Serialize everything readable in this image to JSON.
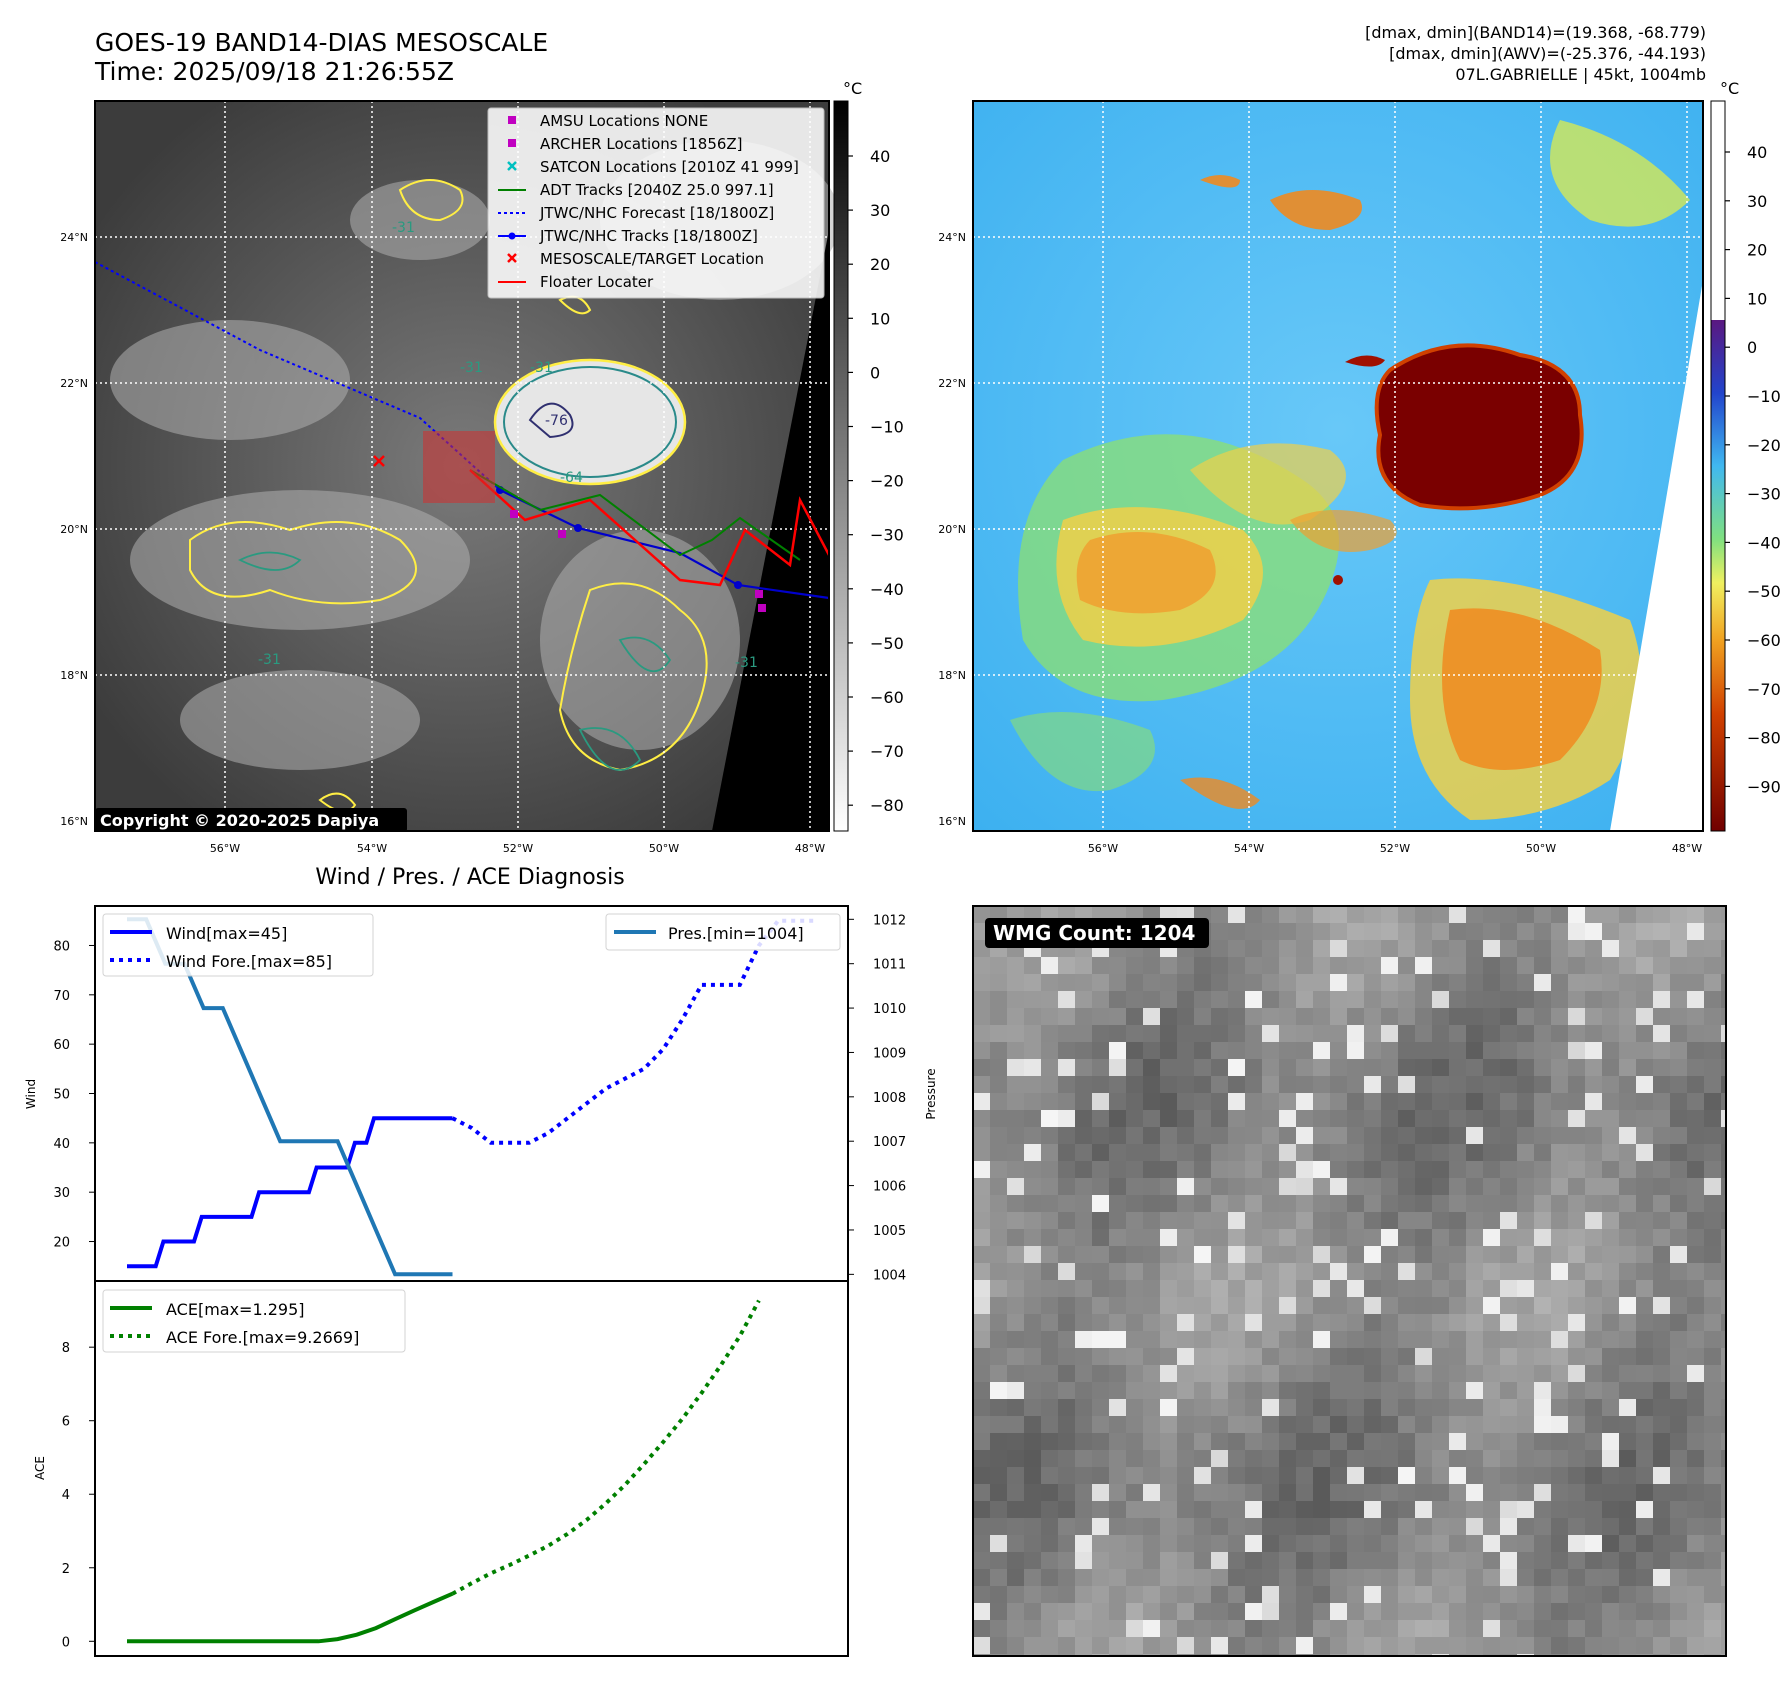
{
  "header": {
    "title_line1": "GOES-19 BAND14-DIAS MESOSCALE",
    "title_line2": "Time: 2025/09/18 21:26:55Z",
    "info_line1": "[dmax, dmin](BAND14)=(19.368, -68.779)",
    "info_line2": "[dmax, dmin](AWV)=(-25.376, -44.193)",
    "info_line3": "07L.GABRIELLE | 45kt, 1004mb"
  },
  "ir_map": {
    "unit": "°C",
    "lat_labels": [
      "24°N",
      "22°N",
      "20°N",
      "18°N",
      "16°N"
    ],
    "lon_labels": [
      "56°W",
      "54°W",
      "52°W",
      "50°W",
      "48°W"
    ],
    "colorbar_ticks": [
      "40",
      "30",
      "20",
      "10",
      "0",
      "−10",
      "−20",
      "−30",
      "−40",
      "−50",
      "−60",
      "−70",
      "−80"
    ],
    "copyright": "Copyright © 2020-2025 Dapiya",
    "contour_labels": [
      "-31",
      "-31",
      "-31",
      "-76",
      "-64",
      "-31",
      "-31"
    ],
    "legend": [
      {
        "label": "AMSU Locations NONE",
        "color": "#c000c0",
        "marker": "square"
      },
      {
        "label": "ARCHER Locations [1856Z]",
        "color": "#c000c0",
        "marker": "square"
      },
      {
        "label": "SATCON Locations [2010Z 41 999]",
        "color": "#00c0c0",
        "marker": "x"
      },
      {
        "label": "ADT Tracks [2040Z 25.0 997.1]",
        "color": "#008000",
        "marker": "line"
      },
      {
        "label": "JTWC/NHC Forecast [18/1800Z]",
        "color": "#0000ff",
        "marker": "dotted"
      },
      {
        "label": "JTWC/NHC Tracks [18/1800Z]",
        "color": "#0000ff",
        "marker": "line-dot"
      },
      {
        "label": "MESOSCALE/TARGET Location",
        "color": "#ff0000",
        "marker": "x"
      },
      {
        "label": "Floater Locater",
        "color": "#ff0000",
        "marker": "line"
      }
    ]
  },
  "wv_map": {
    "unit": "°C",
    "lat_labels": [
      "24°N",
      "22°N",
      "20°N",
      "18°N",
      "16°N"
    ],
    "lon_labels": [
      "56°W",
      "54°W",
      "52°W",
      "50°W",
      "48°W"
    ],
    "colorbar_ticks": [
      "40",
      "30",
      "20",
      "10",
      "0",
      "−10",
      "−20",
      "−30",
      "−40",
      "−50",
      "−60",
      "−70",
      "−80",
      "−90"
    ]
  },
  "wmg": {
    "label": "WMG Count: 1204"
  },
  "chart_data": [
    {
      "type": "line",
      "title": "Wind / Pres. / ACE Diagnosis",
      "xlabel": "",
      "ylabel": "Wind",
      "y2label": "Pressure",
      "ylim": [
        12,
        88
      ],
      "y2lim": [
        1003.85,
        1012.3
      ],
      "yticks": [
        "20",
        "30",
        "40",
        "50",
        "60",
        "70",
        "80"
      ],
      "y2ticks": [
        "1004",
        "1005",
        "1006",
        "1007",
        "1008",
        "1009",
        "1010",
        "1011",
        "1012"
      ],
      "x": [
        0,
        1,
        2,
        3,
        4,
        5,
        6,
        7,
        8,
        9,
        10,
        11,
        12,
        13,
        14,
        15,
        16,
        17,
        18,
        19,
        20,
        21,
        22,
        23,
        24,
        25,
        26,
        27,
        28,
        29,
        30,
        31,
        32,
        33,
        34,
        35,
        36
      ],
      "series": [
        {
          "name": "Wind[max=45]",
          "axis": "left",
          "style": "solid",
          "color": "#0000ff",
          "values": [
            15,
            15,
            20,
            20,
            25,
            25,
            25,
            30,
            30,
            30,
            35,
            35,
            40,
            45,
            45,
            45,
            45,
            45,
            null,
            null,
            null,
            null,
            null,
            null,
            null,
            null,
            null,
            null,
            null,
            null,
            null,
            null,
            null,
            null,
            null,
            null,
            null
          ]
        },
        {
          "name": "Wind Fore.[max=85]",
          "axis": "left",
          "style": "dotted",
          "color": "#0000ff",
          "values": [
            null,
            null,
            null,
            null,
            null,
            null,
            null,
            null,
            null,
            null,
            null,
            null,
            null,
            null,
            null,
            null,
            null,
            45,
            43,
            40,
            40,
            40,
            42,
            45,
            48,
            51,
            53,
            55,
            59,
            65,
            72,
            72,
            72,
            80,
            85,
            85,
            85
          ]
        },
        {
          "name": "Pres.[min=1004]",
          "axis": "right",
          "style": "solid",
          "color": "#1f77b4",
          "values": [
            1012,
            1012,
            1011,
            1011,
            1010,
            1010,
            1009,
            1008,
            1007,
            1007,
            1007,
            1007,
            1006,
            1005,
            1004,
            1004,
            1004,
            1004,
            null,
            null,
            null,
            null,
            null,
            null,
            null,
            null,
            null,
            null,
            null,
            null,
            null,
            null,
            null,
            null,
            null,
            null,
            null
          ]
        }
      ],
      "legend_left": [
        "Wind[max=45]",
        "Wind Fore.[max=85]"
      ],
      "legend_right": [
        "Pres.[min=1004]"
      ]
    },
    {
      "type": "line",
      "xlabel": "",
      "ylabel": "ACE",
      "ylim": [
        -0.4,
        9.8
      ],
      "yticks": [
        "0",
        "2",
        "4",
        "6",
        "8"
      ],
      "x": [
        0,
        1,
        2,
        3,
        4,
        5,
        6,
        7,
        8,
        9,
        10,
        11,
        12,
        13,
        14,
        15,
        16,
        17,
        18,
        19,
        20,
        21,
        22,
        23,
        24,
        25,
        26,
        27,
        28,
        29,
        30,
        31,
        32,
        33,
        34,
        35,
        36
      ],
      "series": [
        {
          "name": "ACE[max=1.295]",
          "style": "solid",
          "color": "#008000",
          "values": [
            0,
            0,
            0,
            0,
            0,
            0,
            0,
            0,
            0,
            0,
            0,
            0.06,
            0.18,
            0.36,
            0.6,
            0.84,
            1.07,
            1.295,
            null,
            null,
            null,
            null,
            null,
            null,
            null,
            null,
            null,
            null,
            null,
            null,
            null,
            null,
            null,
            null,
            null,
            null,
            null
          ]
        },
        {
          "name": "ACE Fore.[max=9.2669]",
          "style": "dotted",
          "color": "#008000",
          "values": [
            null,
            null,
            null,
            null,
            null,
            null,
            null,
            null,
            null,
            null,
            null,
            null,
            null,
            null,
            null,
            null,
            null,
            1.295,
            1.58,
            1.85,
            2.08,
            2.33,
            2.6,
            2.92,
            3.3,
            3.75,
            4.25,
            4.82,
            5.42,
            6.05,
            6.75,
            7.5,
            8.3,
            9.2669,
            null,
            null,
            null
          ]
        }
      ],
      "legend": [
        "ACE[max=1.295]",
        "ACE Fore.[max=9.2669]"
      ]
    }
  ]
}
